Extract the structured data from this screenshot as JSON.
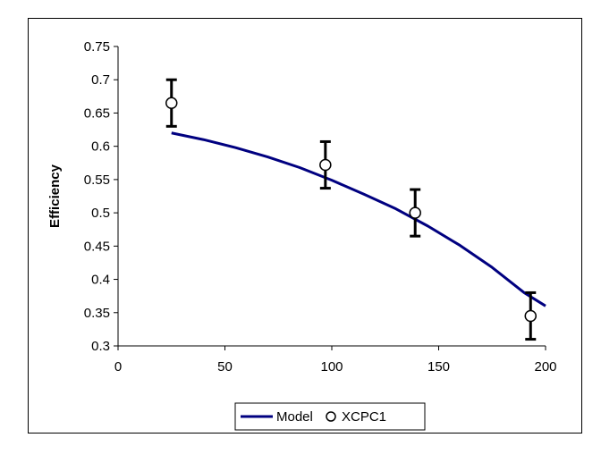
{
  "chart_data": {
    "type": "scatter",
    "title": "",
    "xlabel": "",
    "ylabel": "Efficiency",
    "xlim": [
      0,
      200
    ],
    "ylim": [
      0.3,
      0.75
    ],
    "x_ticks": [
      "0",
      "50",
      "100",
      "150",
      "200"
    ],
    "y_ticks": [
      "0.3",
      "0.35",
      "0.4",
      "0.45",
      "0.5",
      "0.55",
      "0.6",
      "0.65",
      "0.7",
      "0.75"
    ],
    "grid": false,
    "legend_position": "bottom",
    "series": [
      {
        "name": "Model",
        "kind": "line",
        "color": "#000080",
        "x": [
          25,
          40,
          55,
          70,
          85,
          100,
          115,
          130,
          145,
          160,
          175,
          190,
          200
        ],
        "y": [
          0.62,
          0.61,
          0.598,
          0.584,
          0.568,
          0.549,
          0.528,
          0.506,
          0.48,
          0.451,
          0.418,
          0.38,
          0.36
        ]
      },
      {
        "name": "XCPC1",
        "kind": "scatter",
        "marker": "open-circle",
        "color": "#000000",
        "x": [
          25,
          97,
          139,
          193
        ],
        "y": [
          0.665,
          0.572,
          0.5,
          0.345
        ],
        "error_low": [
          0.63,
          0.537,
          0.465,
          0.31
        ],
        "error_high": [
          0.7,
          0.607,
          0.535,
          0.38
        ]
      }
    ]
  }
}
